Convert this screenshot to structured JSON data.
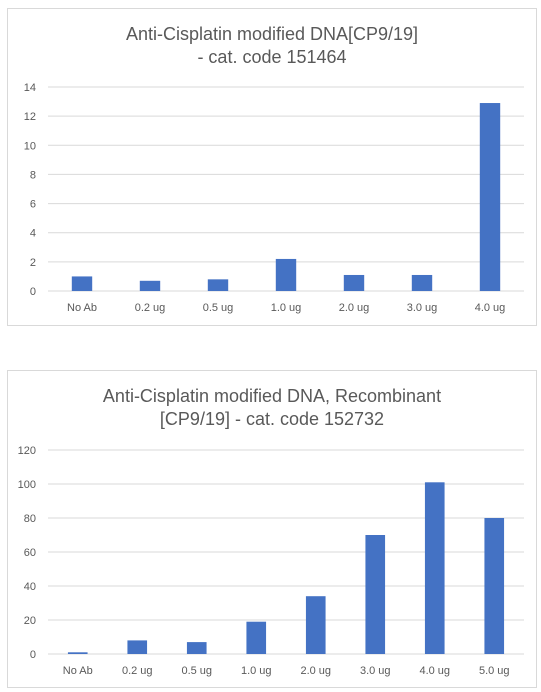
{
  "chart_data": [
    {
      "type": "bar",
      "title": [
        "Anti-Cisplatin modified DNA[CP9/19]",
        "- cat. code 151464"
      ],
      "categories": [
        "No Ab",
        "0.2 ug",
        "0.5 ug",
        "1.0 ug",
        "2.0 ug",
        "3.0 ug",
        "4.0 ug"
      ],
      "series": [
        {
          "values": [
            1.0,
            0.7,
            0.8,
            2.2,
            1.1,
            1.1,
            12.9
          ]
        }
      ],
      "ylim": [
        0,
        14
      ],
      "yticks": [
        0,
        2,
        4,
        6,
        8,
        10,
        12,
        14
      ],
      "grid": true,
      "color": "#4472C4"
    },
    {
      "type": "bar",
      "title": [
        "Anti-Cisplatin modified DNA, Recombinant",
        "[CP9/19] - cat. code 152732"
      ],
      "categories": [
        "No Ab",
        "0.2 ug",
        "0.5 ug",
        "1.0 ug",
        "2.0 ug",
        "3.0 ug",
        "4.0 ug",
        "5.0 ug"
      ],
      "series": [
        {
          "values": [
            1,
            8,
            7,
            19,
            34,
            70,
            101,
            80
          ]
        }
      ],
      "ylim": [
        0,
        120
      ],
      "yticks": [
        0,
        20,
        40,
        60,
        80,
        100,
        120
      ],
      "grid": true,
      "color": "#4472C4"
    }
  ]
}
